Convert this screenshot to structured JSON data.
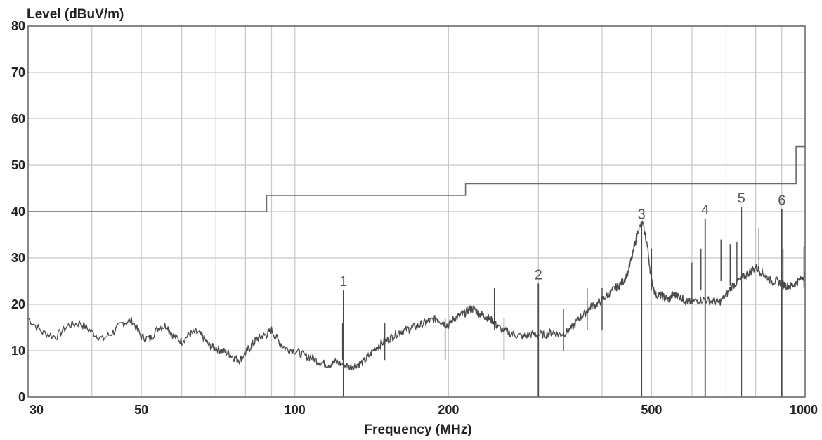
{
  "chart_data": {
    "type": "line",
    "title": "",
    "ylabel": "Level (dBuV/m)",
    "xlabel": "Frequency (MHz)",
    "x_scale": "log",
    "xlim": [
      30,
      1000
    ],
    "ylim": [
      0,
      80
    ],
    "grid": true,
    "x_gridlines": [
      30,
      40,
      50,
      60,
      70,
      80,
      90,
      100,
      200,
      300,
      400,
      500,
      600,
      700,
      800,
      900,
      1000
    ],
    "x_tick_labels": [
      "30",
      "50",
      "100",
      "200",
      "500",
      "1000"
    ],
    "y_tick_labels": [
      "0",
      "10",
      "20",
      "30",
      "40",
      "50",
      "60",
      "70",
      "80"
    ],
    "series": [
      {
        "role": "limit",
        "color": "#6a6a6a",
        "x": [
          30,
          88,
          88,
          216,
          216,
          960,
          960,
          1000
        ],
        "y": [
          40,
          40,
          43.5,
          43.5,
          46,
          46,
          54,
          54
        ]
      },
      {
        "role": "emission",
        "color": "#4a4a4a",
        "x": [
          30,
          32,
          34,
          36,
          38,
          40,
          42,
          44,
          46,
          48,
          50,
          52,
          54,
          56,
          58,
          60,
          62,
          64,
          66,
          68,
          70,
          72,
          74,
          76,
          78,
          80,
          82,
          84,
          86,
          88,
          90,
          93,
          96,
          100,
          104,
          108,
          112,
          116,
          120,
          124,
          128,
          132,
          136,
          140,
          145,
          150,
          155,
          160,
          165,
          170,
          175,
          180,
          185,
          190,
          195,
          200,
          205,
          210,
          215,
          220,
          225,
          230,
          235,
          240,
          245,
          250,
          260,
          270,
          280,
          290,
          300,
          310,
          320,
          330,
          340,
          350,
          360,
          370,
          380,
          390,
          400,
          410,
          420,
          430,
          440,
          450,
          460,
          470,
          480,
          490,
          500,
          510,
          520,
          530,
          540,
          550,
          560,
          570,
          580,
          590,
          600,
          620,
          640,
          660,
          680,
          700,
          720,
          740,
          760,
          780,
          800,
          820,
          840,
          860,
          880,
          900,
          920,
          940,
          960,
          980,
          1000
        ],
        "y": [
          17,
          14,
          13,
          15.5,
          16,
          14,
          12.5,
          14,
          16,
          16.5,
          13,
          12.5,
          15,
          15.5,
          13,
          12,
          13.5,
          14,
          13,
          11,
          10.5,
          10,
          9.5,
          8.5,
          8,
          9.5,
          11,
          12.5,
          13,
          13.5,
          14.5,
          12,
          10.5,
          10,
          9,
          8.5,
          7.5,
          7,
          7.5,
          7,
          6.5,
          7,
          7.5,
          9,
          11,
          12,
          13,
          14,
          14.5,
          15,
          15.5,
          16,
          16.5,
          17,
          16,
          15.5,
          17,
          17.5,
          18,
          19,
          19,
          18,
          17.5,
          17,
          16.5,
          15,
          14,
          13.5,
          13,
          13.5,
          13.5,
          13.5,
          14,
          13.5,
          14,
          15,
          17,
          18,
          19.5,
          20,
          21,
          22,
          23,
          24,
          25,
          27,
          31,
          36,
          37.5,
          33,
          25,
          22,
          22,
          21.5,
          21,
          22,
          22,
          21.5,
          21,
          20.5,
          20.5,
          21,
          21,
          20.5,
          20.5,
          22,
          24,
          25,
          26,
          27,
          28,
          27,
          26,
          25,
          25,
          24.5,
          24,
          24,
          24.5,
          25.5,
          26.5
        ]
      }
    ],
    "spikes": [
      {
        "x": 124.5,
        "y": 23
      },
      {
        "x": 124,
        "y": 16
      },
      {
        "x": 150,
        "y": 16
      },
      {
        "x": 197,
        "y": 17
      },
      {
        "x": 246,
        "y": 23.5
      },
      {
        "x": 257,
        "y": 17
      },
      {
        "x": 300,
        "y": 24
      },
      {
        "x": 336,
        "y": 19
      },
      {
        "x": 374,
        "y": 23.5
      },
      {
        "x": 400,
        "y": 23.5
      },
      {
        "x": 500,
        "y": 32
      },
      {
        "x": 600,
        "y": 29
      },
      {
        "x": 625,
        "y": 32
      },
      {
        "x": 684,
        "y": 34
      },
      {
        "x": 713,
        "y": 33
      },
      {
        "x": 735,
        "y": 33.5
      },
      {
        "x": 812,
        "y": 36.5
      },
      {
        "x": 905,
        "y": 32
      },
      {
        "x": 995,
        "y": 32.5
      }
    ],
    "markers": [
      {
        "label": "1",
        "x": 124.5,
        "y": 23
      },
      {
        "label": "2",
        "x": 300,
        "y": 24.5
      },
      {
        "label": "3",
        "x": 478,
        "y": 37.5
      },
      {
        "label": "4",
        "x": 637,
        "y": 38.5
      },
      {
        "label": "5",
        "x": 750,
        "y": 41
      },
      {
        "label": "6",
        "x": 900,
        "y": 40.5
      }
    ]
  }
}
